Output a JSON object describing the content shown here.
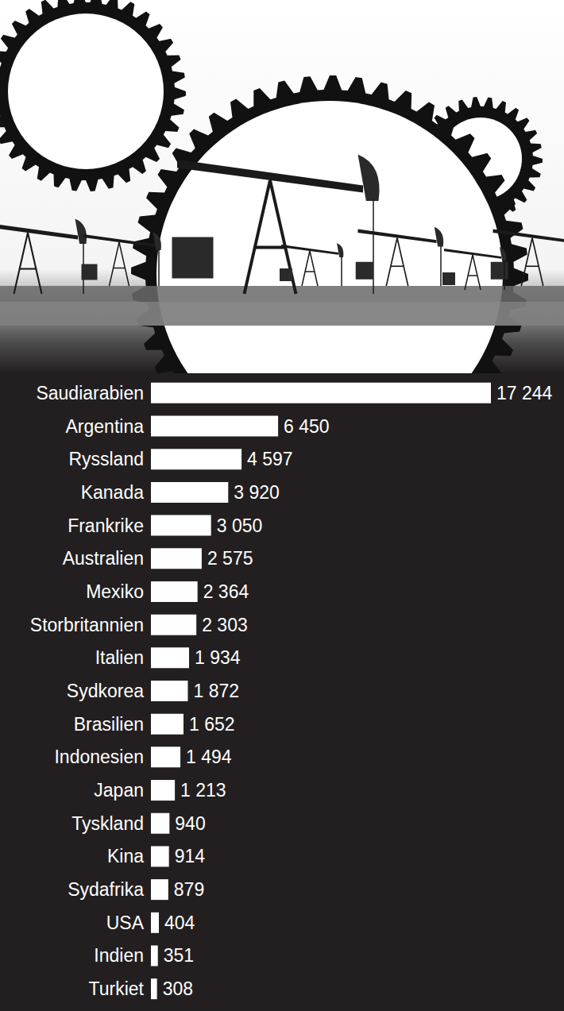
{
  "chart_data": {
    "type": "bar",
    "orientation": "horizontal",
    "categories": [
      "Saudiarabien",
      "Argentina",
      "Ryssland",
      "Kanada",
      "Frankrike",
      "Australien",
      "Mexiko",
      "Storbritannien",
      "Italien",
      "Sydkorea",
      "Brasilien",
      "Indonesien",
      "Japan",
      "Tyskland",
      "Kina",
      "Sydafrika",
      "USA",
      "Indien",
      "Turkiet"
    ],
    "values": [
      17244,
      6450,
      4597,
      3920,
      3050,
      2575,
      2364,
      2303,
      1934,
      1872,
      1652,
      1494,
      1213,
      940,
      914,
      879,
      404,
      351,
      308
    ],
    "value_labels": [
      "17 244",
      "6 450",
      "4 597",
      "3 920",
      "3 050",
      "2 575",
      "2 364",
      "2 303",
      "1 934",
      "1 872",
      "1 652",
      "1 494",
      "1 213",
      "940",
      "914",
      "879",
      "404",
      "351",
      "308"
    ],
    "color": "#ffffff",
    "xlim": [
      0,
      17244
    ],
    "data_labels": true,
    "tick_labels": "y",
    "grid": false
  }
}
